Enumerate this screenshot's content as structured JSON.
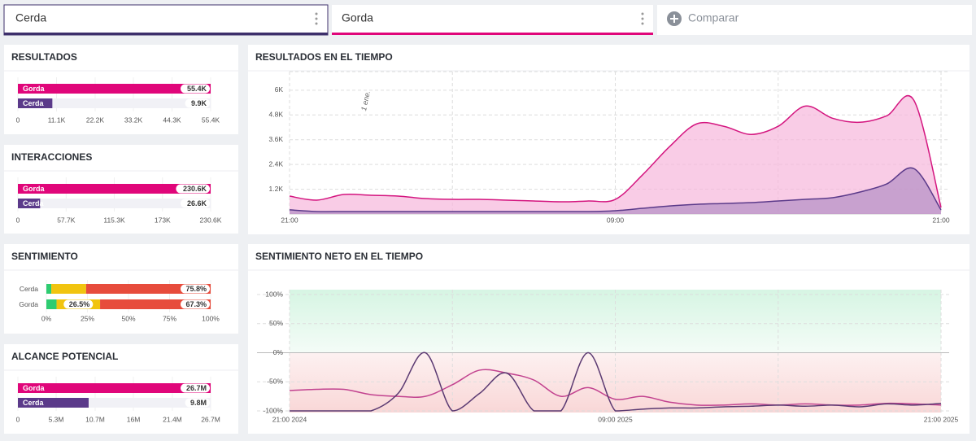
{
  "tabs": [
    {
      "label": "Cerda",
      "color": "#3d2f6b"
    },
    {
      "label": "Gorda",
      "color": "#e0067a"
    }
  ],
  "compare": "Comparar",
  "chart_data": [
    {
      "type": "bar",
      "title": "RESULTADOS",
      "categories": [
        "Gorda",
        "Cerda"
      ],
      "values": [
        55400,
        9900
      ],
      "value_labels": [
        "55.4K",
        "9.9K"
      ],
      "colors": [
        "#e0067a",
        "#5b3a8a"
      ],
      "xlim": [
        0,
        55400
      ],
      "xticks": [
        0,
        {
          "value": 11100,
          "label": "11.1K"
        },
        {
          "value": 22200,
          "label": "22.2K"
        },
        {
          "value": 33200,
          "label": "33.2K"
        },
        {
          "value": 44300,
          "label": "44.3K"
        },
        {
          "value": 55400,
          "label": "55.4K"
        }
      ]
    },
    {
      "type": "bar",
      "title": "INTERACCIONES",
      "categories": [
        "Gorda",
        "Cerda"
      ],
      "values": [
        230600,
        26600
      ],
      "value_labels": [
        "230.6K",
        "26.6K"
      ],
      "colors": [
        "#e0067a",
        "#5b3a8a"
      ],
      "xlim": [
        0,
        230600
      ],
      "xticks": [
        0,
        {
          "value": 57700,
          "label": "57.7K"
        },
        {
          "value": 115300,
          "label": "115.3K"
        },
        {
          "value": 173000,
          "label": "173K"
        },
        {
          "value": 230600,
          "label": "230.6K"
        }
      ]
    },
    {
      "type": "stacked_bar",
      "title": "SENTIMIENTO",
      "categories": [
        "Cerda",
        "Gorda"
      ],
      "series": [
        {
          "color": "#2ecc71",
          "values": [
            3,
            6.2
          ]
        },
        {
          "color": "#f1c40f",
          "values": [
            21.2,
            26.5
          ],
          "value_labels": [
            null,
            "26.5%"
          ]
        },
        {
          "color": "#e74c3c",
          "values": [
            75.8,
            67.3
          ],
          "value_labels": [
            "75.8%",
            "67.3%"
          ]
        }
      ],
      "xlim": [
        0,
        100
      ],
      "xticks": [
        {
          "value": 0,
          "label": "0%"
        },
        {
          "value": 25,
          "label": "25%"
        },
        {
          "value": 50,
          "label": "50%"
        },
        {
          "value": 75,
          "label": "75%"
        },
        {
          "value": 100,
          "label": "100%"
        }
      ]
    },
    {
      "type": "bar",
      "title": "ALCANCE POTENCIAL",
      "categories": [
        "Gorda",
        "Cerda"
      ],
      "values": [
        26700000,
        9800000
      ],
      "value_labels": [
        "26.7M",
        "9.8M"
      ],
      "colors": [
        "#e0067a",
        "#5b3a8a"
      ],
      "xlim": [
        0,
        26700000
      ],
      "xticks": [
        0,
        {
          "value": 5300000,
          "label": "5.3M"
        },
        {
          "value": 10700000,
          "label": "10.7M"
        },
        {
          "value": 16000000,
          "label": "16M"
        },
        {
          "value": 21400000,
          "label": "21.4M"
        },
        {
          "value": 26700000,
          "label": "26.7M"
        }
      ]
    },
    {
      "type": "area",
      "title": "RESULTADOS EN EL TIEMPO",
      "categories": [
        "21:00",
        null,
        null,
        null,
        null,
        null,
        null,
        null,
        null,
        null,
        null,
        null,
        "09:00",
        null,
        null,
        null,
        null,
        null,
        null,
        null,
        null,
        null,
        null,
        null,
        "21:00"
      ],
      "annotations": [
        {
          "text": "1 ene.",
          "x": 3
        }
      ],
      "series": [
        {
          "color": "#d4157f",
          "fill": "#f7b6dc",
          "values": [
            866,
            670,
            944,
            905,
            866,
            748,
            708,
            708,
            670,
            630,
            590,
            630,
            708,
            1890,
            3265,
            4367,
            4250,
            3855,
            4250,
            5230,
            4640,
            4445,
            4760,
            5510,
            315
          ]
        },
        {
          "color": "#5b3a8a",
          "fill": "#b48fc4",
          "values": [
            200,
            120,
            120,
            120,
            120,
            120,
            120,
            120,
            120,
            120,
            120,
            120,
            160,
            275,
            390,
            470,
            510,
            550,
            630,
            708,
            790,
            1060,
            1455,
            2200,
            200
          ]
        }
      ],
      "ylim": [
        0,
        6900
      ],
      "yticks": [
        {
          "value": 1200,
          "label": "1.2K"
        },
        {
          "value": 2400,
          "label": "2.4K"
        },
        {
          "value": 3600,
          "label": "3.6K"
        },
        {
          "value": 4800,
          "label": "4.8K"
        },
        {
          "value": 6000,
          "label": "6K"
        }
      ],
      "grid": true
    },
    {
      "type": "line",
      "title": "SENTIMIENTO NETO EN EL TIEMPO",
      "categories": [
        "21:00 2024",
        null,
        null,
        null,
        null,
        null,
        null,
        null,
        null,
        null,
        null,
        null,
        "09:00 2025",
        null,
        null,
        null,
        null,
        null,
        null,
        null,
        null,
        null,
        null,
        null,
        "21:00 2025"
      ],
      "series": [
        {
          "color": "#c2428f",
          "values": [
            -65,
            -63,
            -63,
            -72,
            -75,
            -75,
            -55,
            -30,
            -35,
            -47,
            -75,
            -60,
            -80,
            -75,
            -85,
            -90,
            -90,
            -88,
            -90,
            -88,
            -90,
            -90,
            -87,
            -88,
            -90
          ]
        },
        {
          "color": "#5b3a72",
          "values": [
            -100,
            -100,
            -100,
            -100,
            -70,
            0,
            -100,
            -70,
            -35,
            -100,
            -100,
            0,
            -100,
            -97,
            -95,
            -95,
            -93,
            -92,
            -90,
            -92,
            -90,
            -93,
            -88,
            -90,
            -87
          ]
        }
      ],
      "ylim": [
        -100,
        100
      ],
      "yticks": [
        {
          "value": -100,
          "label": "-100%"
        },
        {
          "value": -50,
          "label": "-50%"
        },
        {
          "value": 0,
          "label": "0%"
        },
        {
          "value": 50,
          "label": "50%"
        },
        {
          "value": 100,
          "label": "100%"
        }
      ],
      "grid": true
    }
  ]
}
